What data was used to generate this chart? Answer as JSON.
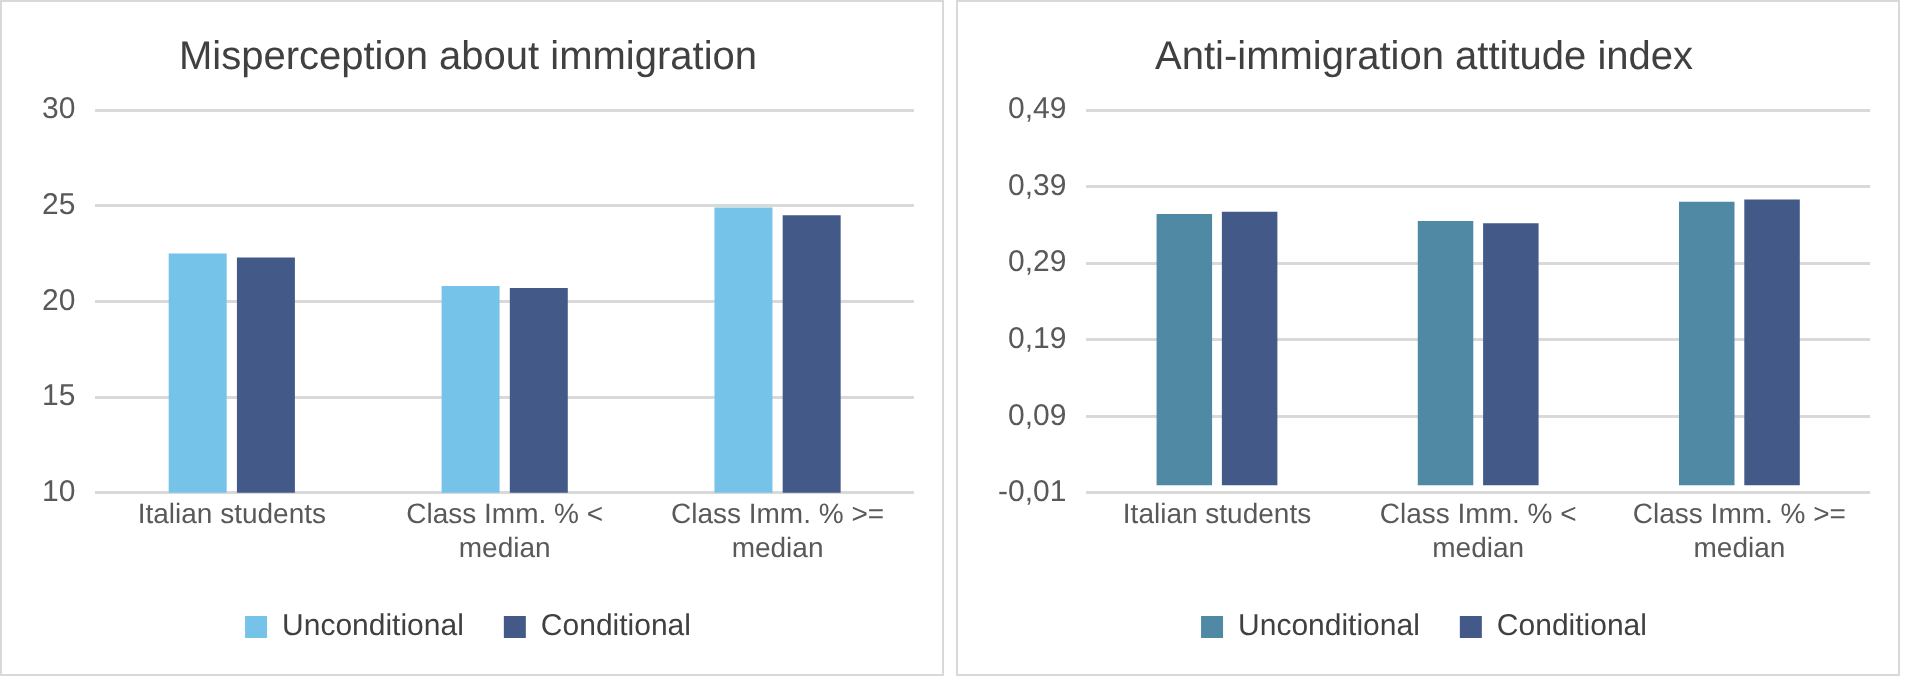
{
  "chart_data": [
    {
      "type": "bar",
      "title": "Misperception about immigration",
      "categories": [
        "Italian students",
        "Class Imm. % < median",
        "Class Imm. % >= median"
      ],
      "series": [
        {
          "name": "Unconditional",
          "color": "#75c3e8",
          "values": [
            22.5,
            20.8,
            24.9
          ]
        },
        {
          "name": "Conditional",
          "color": "#435a89",
          "values": [
            22.3,
            20.7,
            24.5
          ]
        }
      ],
      "ylim": [
        10,
        30
      ],
      "yticks": [
        10,
        15,
        20,
        25,
        30
      ],
      "grid": "y",
      "legend": "bottom"
    },
    {
      "type": "bar",
      "title": "Anti-immigration attitude index",
      "categories": [
        "Italian students",
        "Class Imm. % < median",
        "Class Imm. % >= median"
      ],
      "series": [
        {
          "name": "Unconditional",
          "color": "#5089a4",
          "values": [
            0.354,
            0.345,
            0.37
          ]
        },
        {
          "name": "Conditional",
          "color": "#435a89",
          "values": [
            0.357,
            0.342,
            0.373
          ]
        }
      ],
      "ylim": [
        -0.01,
        0.49
      ],
      "yticks": [
        {
          "value": -0.01,
          "label": "-0,01"
        },
        {
          "value": 0.09,
          "label": "0,09"
        },
        {
          "value": 0.19,
          "label": "0,19"
        },
        {
          "value": 0.29,
          "label": "0,29"
        },
        {
          "value": 0.39,
          "label": "0,39"
        },
        {
          "value": 0.49,
          "label": "0,49"
        }
      ],
      "grid": "y",
      "legend": "bottom"
    }
  ]
}
